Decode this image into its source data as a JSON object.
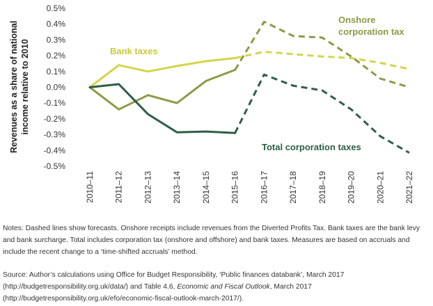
{
  "chart_data": {
    "type": "line",
    "title": "",
    "ylabel_line1": "Revenues as a share of national",
    "ylabel_line2": "income relative to 2010",
    "xlabel": "",
    "categories": [
      "2010–11",
      "2011–12",
      "2012–13",
      "2013–14",
      "2014–15",
      "2015–16",
      "2016–17",
      "2017–18",
      "2018–19",
      "2019–20",
      "2020–21",
      "2021–22"
    ],
    "ylim": [
      -0.5,
      0.5
    ],
    "yticks": [
      -0.5,
      -0.4,
      -0.3,
      -0.2,
      -0.1,
      0,
      0.1,
      0.2,
      0.3,
      0.4,
      0.5
    ],
    "ytick_labels": [
      "-0.5%",
      "-0.4%",
      "-0.3%",
      "-0.2%",
      "-0.1%",
      "0.0%",
      "0.1%",
      "0.2%",
      "0.3%",
      "0.4%",
      "0.5%"
    ],
    "forecast_from_index": 5,
    "grid": false,
    "series": [
      {
        "name": "Bank taxes",
        "color": "#d4d44a",
        "values": [
          0.0,
          0.14,
          0.1,
          0.135,
          0.165,
          0.185,
          0.225,
          0.21,
          0.195,
          0.185,
          0.155,
          0.115
        ]
      },
      {
        "name": "Onshore corporation tax",
        "name_line1": "Onshore",
        "name_line2": "corporation tax",
        "color": "#8c9a45",
        "values": [
          0.0,
          -0.14,
          -0.05,
          -0.1,
          0.04,
          0.11,
          0.415,
          0.325,
          0.315,
          0.195,
          0.055,
          0.0
        ]
      },
      {
        "name": "Total corporation taxes",
        "color": "#2e5e45",
        "values": [
          0.0,
          0.02,
          -0.17,
          -0.285,
          -0.28,
          -0.29,
          0.08,
          0.01,
          -0.02,
          -0.14,
          -0.31,
          -0.415
        ]
      }
    ]
  },
  "notes": {
    "text": "Notes: Dashed lines show forecasts. Onshore receipts include revenues from the Diverted Profits Tax. Bank taxes are the bank levy and bank surcharge. Total includes corporation tax (onshore and offshore) and bank taxes. Measures are based on accruals and include the recent change to a ‘time-shifted accruals’ method."
  },
  "source": {
    "prefix": "Source: Author’s calculations using Office for Budget Responsibility, ‘Public finances databank’, March 2017 (http://budgetresponsibility.org.uk/data/) and Table 4.6, ",
    "italic": "Economic and Fiscal Outlook",
    "suffix": ", March 2017 (http://budgetresponsibility.org.uk/efo/economic-fiscal-outlook-march-2017/)."
  }
}
